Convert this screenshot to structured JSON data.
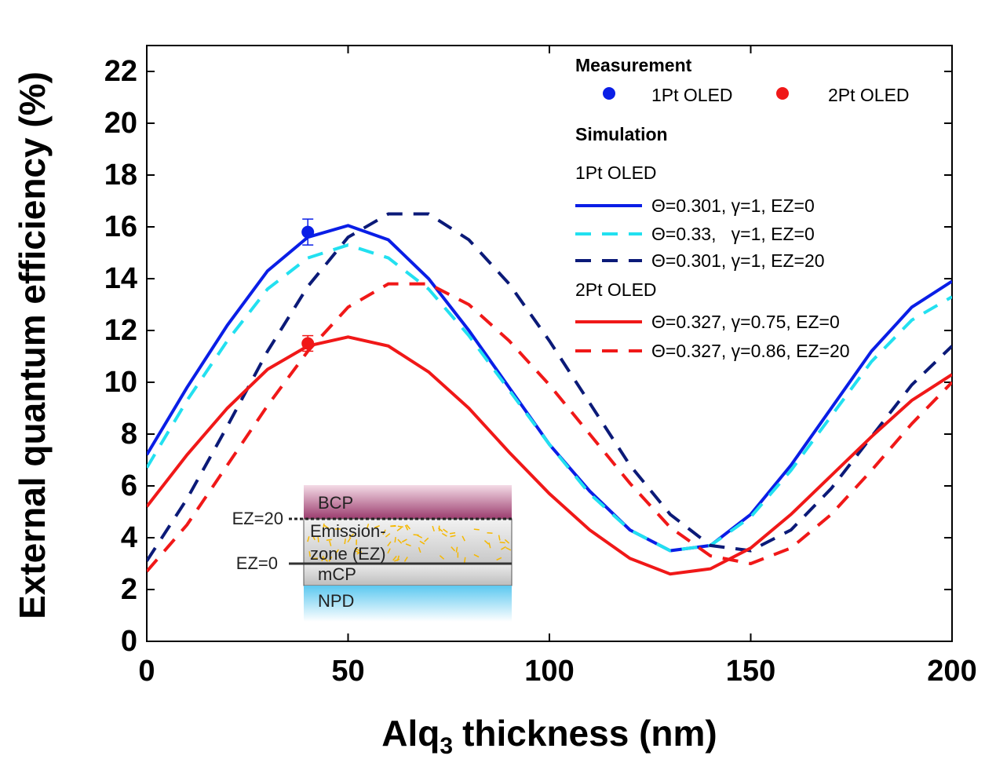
{
  "chart_data": {
    "type": "line",
    "ylabel": "External quantum efficiency (%)",
    "xlabel": [
      "Alq",
      "3",
      "thickness (nm)"
    ],
    "xlim": [
      0,
      200
    ],
    "ylim": [
      0,
      23
    ],
    "xticks": [
      0,
      50,
      100,
      150,
      200
    ],
    "yticks": [
      0,
      2,
      4,
      6,
      8,
      10,
      12,
      14,
      16,
      18,
      20,
      22
    ],
    "x": [
      0,
      10,
      20,
      30,
      40,
      50,
      60,
      70,
      80,
      90,
      100,
      110,
      120,
      130,
      140,
      150,
      160,
      170,
      180,
      190,
      200
    ],
    "series": [
      {
        "name": "Θ=0.301, γ=1, EZ=0",
        "color": "#0a1ee6",
        "dash": false,
        "values": [
          7.2,
          9.8,
          12.2,
          14.3,
          15.6,
          16.05,
          15.5,
          14.0,
          12.0,
          9.8,
          7.6,
          5.8,
          4.3,
          3.5,
          3.7,
          4.9,
          6.8,
          9.0,
          11.2,
          12.9,
          13.9
        ]
      },
      {
        "name": "Θ=0.33,   γ=1, EZ=0",
        "color": "#22e0f0",
        "dash": true,
        "values": [
          6.7,
          9.3,
          11.6,
          13.6,
          14.8,
          15.3,
          14.8,
          13.6,
          11.8,
          9.7,
          7.6,
          5.7,
          4.3,
          3.5,
          3.7,
          4.8,
          6.6,
          8.7,
          10.8,
          12.4,
          13.3
        ]
      },
      {
        "name": "Θ=0.301, γ=1, EZ=20",
        "color": "#0b1a78",
        "dash": true,
        "values": [
          3.1,
          5.5,
          8.3,
          11.2,
          13.7,
          15.6,
          16.5,
          16.5,
          15.5,
          13.8,
          11.6,
          9.2,
          6.8,
          4.9,
          3.7,
          3.5,
          4.3,
          5.9,
          7.9,
          9.9,
          11.4
        ]
      },
      {
        "name": "Θ=0.327, γ=0.75, EZ=0",
        "color": "#f01818",
        "dash": false,
        "values": [
          5.2,
          7.2,
          9.0,
          10.5,
          11.4,
          11.75,
          11.4,
          10.4,
          9.0,
          7.3,
          5.7,
          4.3,
          3.2,
          2.6,
          2.8,
          3.6,
          4.9,
          6.4,
          7.9,
          9.3,
          10.3
        ]
      },
      {
        "name": "Θ=0.327, γ=0.86, EZ=20",
        "color": "#f01818",
        "dash": true,
        "values": [
          2.7,
          4.5,
          6.8,
          9.1,
          11.2,
          12.9,
          13.8,
          13.8,
          13.0,
          11.6,
          9.9,
          8.0,
          6.1,
          4.4,
          3.3,
          3.0,
          3.6,
          4.9,
          6.6,
          8.4,
          10.0
        ]
      }
    ],
    "measurements": [
      {
        "name": "1Pt OLED",
        "color": "#0a1ee6",
        "x": 40,
        "y": 15.8,
        "yerr": 0.5
      },
      {
        "name": "2Pt OLED",
        "color": "#f01818",
        "x": 40,
        "y": 11.5,
        "yerr": 0.3
      }
    ],
    "legend": {
      "measurement_title": "Measurement",
      "simulation_title": "Simulation",
      "groups": [
        "1Pt OLED",
        "2Pt OLED"
      ]
    },
    "inset": {
      "layers": [
        "BCP",
        "Emission-",
        "zone (EZ)",
        "mCP",
        "NPD"
      ],
      "markers": [
        "EZ=20",
        "EZ=0"
      ]
    }
  }
}
